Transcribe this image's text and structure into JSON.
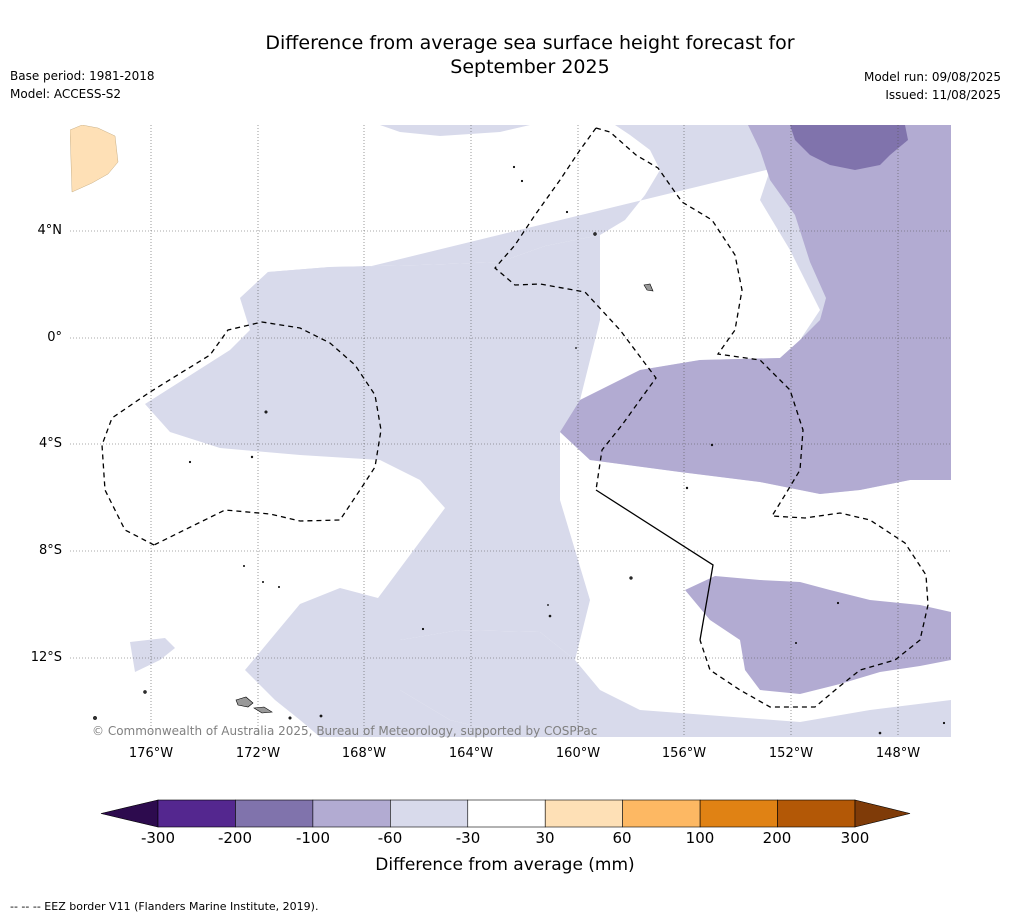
{
  "header": {
    "title_line1": "Difference from average sea surface height forecast for",
    "title_line2": "September 2025",
    "base_period": "Base period: 1981-2018",
    "model": "Model: ACCESS-S2",
    "model_run": "Model run: 09/08/2025",
    "issued": "Issued: 11/08/2025"
  },
  "map": {
    "lon_ticks": [
      "176°W",
      "172°W",
      "168°W",
      "164°W",
      "160°W",
      "156°W",
      "152°W",
      "148°W"
    ],
    "lat_ticks": [
      "4°N",
      "0°",
      "4°S",
      "8°S",
      "12°S"
    ],
    "copyright": "© Commonwealth of Australia 2025, Bureau of Meteorology, supported by COSPPac"
  },
  "colorbar": {
    "title": "Difference from average (mm)",
    "tick_labels": [
      "-300",
      "-200",
      "-100",
      "-60",
      "-30",
      "30",
      "60",
      "100",
      "200",
      "300"
    ],
    "colors": [
      "#2d0b4e",
      "#54278f",
      "#8073ac",
      "#b2abd2",
      "#d8daeb",
      "#ffffff",
      "#fee0b6",
      "#fdb863",
      "#e08214",
      "#b35806",
      "#7f3b08"
    ]
  },
  "footnote": "--  --  -- EEZ border V11 (Flanders Marine Institute, 2019)."
}
